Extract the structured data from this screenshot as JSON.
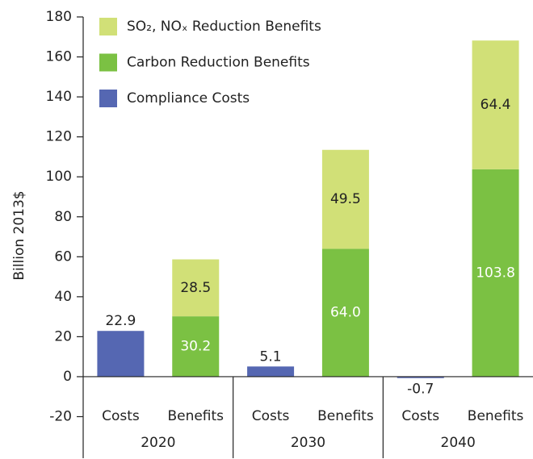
{
  "chart_data": {
    "type": "stacked_bar",
    "y_label": "Billion 2013$",
    "categories": [
      "Costs",
      "Benefits",
      "Costs",
      "Benefits",
      "Costs",
      "Benefits"
    ],
    "groups": [
      "2020",
      "2030",
      "2040"
    ],
    "series": [
      {
        "name": "Compliance Costs",
        "color": "#5567b2",
        "label_color": "#222222",
        "values": [
          22.9,
          null,
          5.1,
          null,
          -0.7,
          null
        ],
        "value_labels": [
          "22.9",
          null,
          "5.1",
          null,
          "-0.7",
          null
        ]
      },
      {
        "name": "Carbon Reduction Benefits",
        "color": "#7bc143",
        "label_color": "#ffffff",
        "values": [
          null,
          30.2,
          null,
          64.0,
          null,
          103.8
        ],
        "value_labels": [
          null,
          "30.2",
          null,
          "64.0",
          null,
          "103.8"
        ]
      },
      {
        "name": "SO₂, NOₓ Reduction Benefits",
        "color": "#d1e077",
        "label_color": "#222222",
        "values": [
          null,
          28.5,
          null,
          49.5,
          null,
          64.4
        ],
        "value_labels": [
          null,
          "28.5",
          null,
          "49.5",
          null,
          "64.4"
        ]
      }
    ],
    "ylim": [
      -20,
      180
    ],
    "yticks": [
      -20,
      0,
      20,
      40,
      60,
      80,
      100,
      120,
      140,
      160,
      180
    ],
    "legend": "upper left"
  }
}
